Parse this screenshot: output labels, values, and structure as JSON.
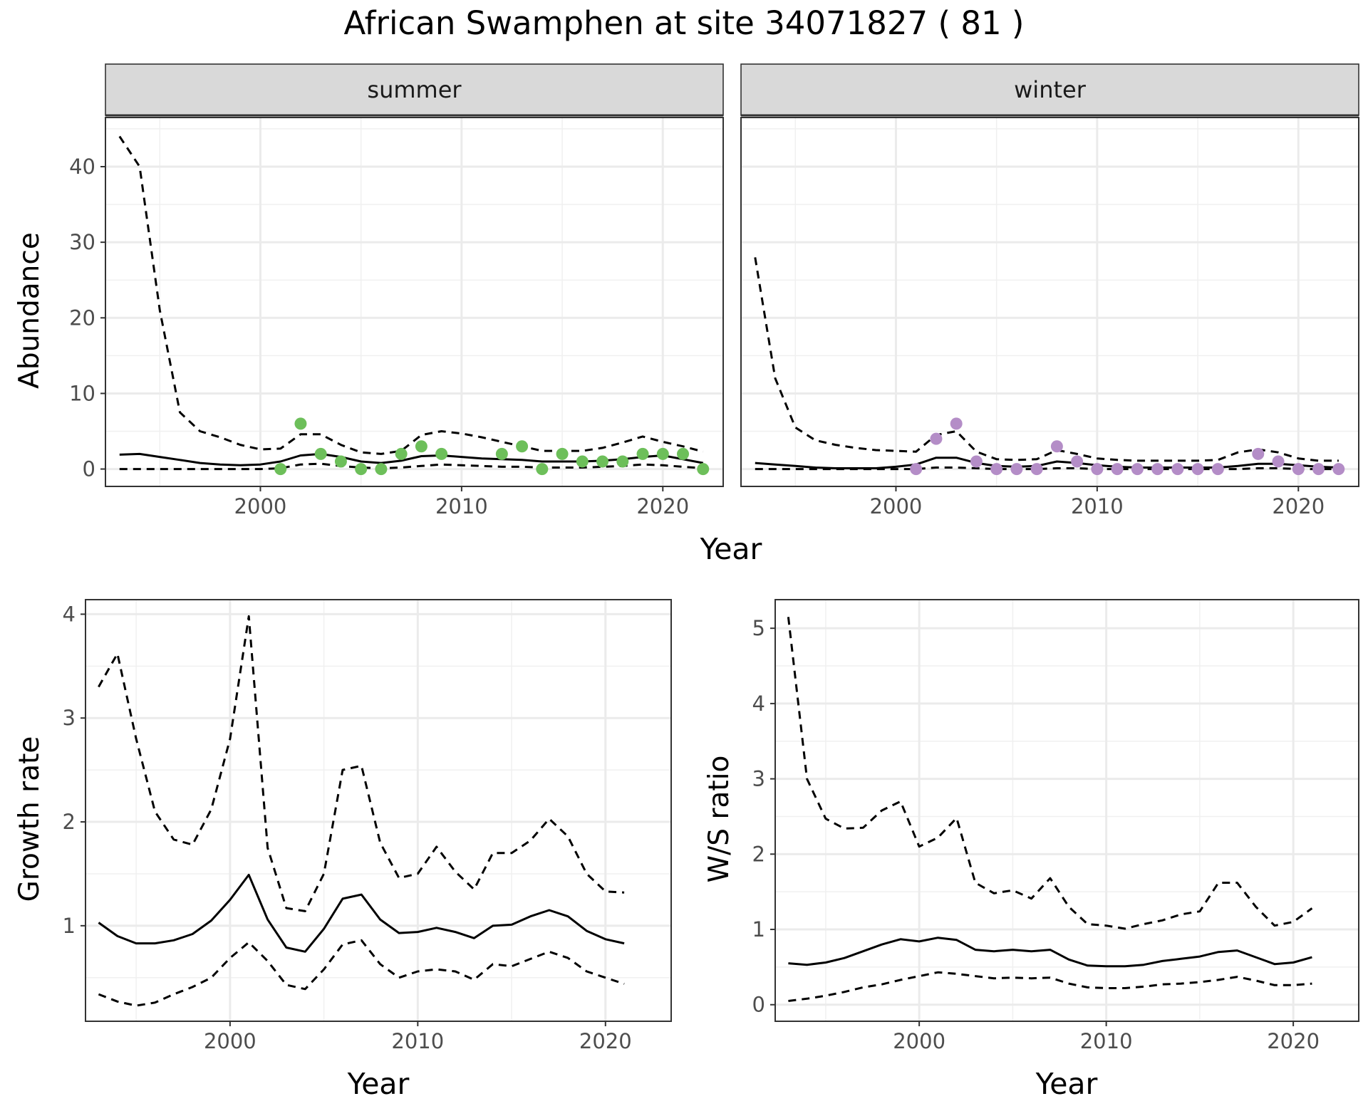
{
  "figure": {
    "title": "African Swamphen at site 34071827 ( 81 )"
  },
  "chart_data": [
    {
      "type": "line",
      "panel": "summer",
      "strip_label": "summer",
      "xlabel": "Year",
      "ylabel": "Abundance",
      "xlim": [
        1992.3,
        2023.0
      ],
      "ylim": [
        -2.3,
        46.5
      ],
      "x_ticks": [
        2000,
        2010,
        2020
      ],
      "y_ticks": [
        0,
        10,
        20,
        30,
        40
      ],
      "grid": true,
      "points_color": "#6dbf5a",
      "series": [
        {
          "role": "mean",
          "style": "solid",
          "x": [
            1993,
            1994,
            1995,
            1996,
            1997,
            1998,
            1999,
            2000,
            2001,
            2002,
            2003,
            2004,
            2005,
            2006,
            2007,
            2008,
            2009,
            2010,
            2011,
            2012,
            2013,
            2014,
            2015,
            2016,
            2017,
            2018,
            2019,
            2020,
            2021,
            2022
          ],
          "y": [
            1.9,
            2.0,
            1.6,
            1.2,
            0.8,
            0.6,
            0.5,
            0.6,
            1.0,
            1.8,
            2.0,
            1.6,
            1.0,
            0.8,
            1.1,
            1.7,
            1.8,
            1.6,
            1.4,
            1.3,
            1.2,
            1.0,
            1.0,
            1.0,
            1.1,
            1.3,
            1.6,
            1.8,
            1.3,
            0.8
          ]
        },
        {
          "role": "upper",
          "style": "dashed",
          "x": [
            1993,
            1994,
            1995,
            1996,
            1997,
            1998,
            1999,
            2000,
            2001,
            2002,
            2003,
            2004,
            2005,
            2006,
            2007,
            2008,
            2009,
            2010,
            2011,
            2012,
            2013,
            2014,
            2015,
            2016,
            2017,
            2018,
            2019,
            2020,
            2021,
            2022
          ],
          "y": [
            44,
            40,
            21,
            7.5,
            5,
            4.2,
            3.2,
            2.6,
            2.7,
            4.6,
            4.6,
            3.2,
            2.2,
            2.0,
            2.4,
            4.5,
            5.0,
            4.7,
            4.2,
            3.6,
            3.0,
            2.4,
            2.4,
            2.4,
            2.8,
            3.5,
            4.3,
            3.6,
            3.0,
            2.3
          ]
        },
        {
          "role": "lower",
          "style": "dashed",
          "x": [
            1993,
            1994,
            1995,
            1996,
            1997,
            1998,
            1999,
            2000,
            2001,
            2002,
            2003,
            2004,
            2005,
            2006,
            2007,
            2008,
            2009,
            2010,
            2011,
            2012,
            2013,
            2014,
            2015,
            2016,
            2017,
            2018,
            2019,
            2020,
            2021,
            2022
          ],
          "y": [
            0,
            0,
            0,
            0,
            0,
            0,
            0,
            0,
            0.1,
            0.6,
            0.7,
            0.4,
            0.2,
            0.1,
            0.2,
            0.4,
            0.6,
            0.5,
            0.4,
            0.3,
            0.3,
            0.2,
            0.2,
            0.2,
            0.3,
            0.4,
            0.6,
            0.5,
            0.3,
            0.1
          ]
        }
      ],
      "points": {
        "x": [
          2001,
          2002,
          2003,
          2004,
          2005,
          2006,
          2007,
          2008,
          2009,
          2012,
          2013,
          2014,
          2015,
          2016,
          2017,
          2018,
          2019,
          2020,
          2021,
          2022
        ],
        "y": [
          0,
          6,
          2,
          1,
          0,
          0,
          2,
          3,
          2,
          2,
          3,
          0,
          2,
          1,
          1,
          1,
          2,
          2,
          2,
          0
        ]
      }
    },
    {
      "type": "line",
      "panel": "winter",
      "strip_label": "winter",
      "xlabel": "Year",
      "ylabel": "",
      "xlim": [
        1992.3,
        2023.0
      ],
      "ylim": [
        -2.3,
        46.5
      ],
      "x_ticks": [
        2000,
        2010,
        2020
      ],
      "y_ticks": [
        0,
        10,
        20,
        30,
        40
      ],
      "grid": true,
      "points_color": "#b48dc7",
      "series": [
        {
          "role": "mean",
          "style": "solid",
          "x": [
            1993,
            1994,
            1995,
            1996,
            1997,
            1998,
            1999,
            2000,
            2001,
            2002,
            2003,
            2004,
            2005,
            2006,
            2007,
            2008,
            2009,
            2010,
            2011,
            2012,
            2013,
            2014,
            2015,
            2016,
            2017,
            2018,
            2019,
            2020,
            2021,
            2022
          ],
          "y": [
            0.8,
            0.6,
            0.4,
            0.2,
            0.1,
            0.1,
            0.1,
            0.3,
            0.6,
            1.5,
            1.5,
            0.8,
            0.4,
            0.3,
            0.4,
            1.0,
            0.8,
            0.5,
            0.3,
            0.2,
            0.2,
            0.2,
            0.2,
            0.2,
            0.4,
            0.7,
            0.7,
            0.5,
            0.3,
            0.2
          ]
        },
        {
          "role": "upper",
          "style": "dashed",
          "x": [
            1993,
            1994,
            1995,
            1996,
            1997,
            1998,
            1999,
            2000,
            2001,
            2002,
            2003,
            2004,
            2005,
            2006,
            2007,
            2008,
            2009,
            2010,
            2011,
            2012,
            2013,
            2014,
            2015,
            2016,
            2017,
            2018,
            2019,
            2020,
            2021,
            2022
          ],
          "y": [
            28,
            12,
            5.5,
            3.8,
            3.2,
            2.8,
            2.5,
            2.4,
            2.3,
            4.5,
            5.0,
            2.3,
            1.3,
            1.2,
            1.3,
            2.5,
            2.0,
            1.4,
            1.2,
            1.1,
            1.1,
            1.1,
            1.1,
            1.2,
            2.2,
            2.6,
            2.2,
            1.4,
            1.1,
            1.1
          ]
        },
        {
          "role": "lower",
          "style": "dashed",
          "x": [
            1993,
            1994,
            1995,
            1996,
            1997,
            1998,
            1999,
            2000,
            2001,
            2002,
            2003,
            2004,
            2005,
            2006,
            2007,
            2008,
            2009,
            2010,
            2011,
            2012,
            2013,
            2014,
            2015,
            2016,
            2017,
            2018,
            2019,
            2020,
            2021,
            2022
          ],
          "y": [
            0,
            0,
            0,
            0,
            0,
            0,
            0,
            0,
            0,
            0.2,
            0.2,
            0.1,
            0,
            0,
            0,
            0.1,
            0.1,
            0,
            0,
            0,
            0,
            0,
            0,
            0,
            0,
            0.1,
            0.1,
            0,
            0,
            0
          ]
        }
      ],
      "points": {
        "x": [
          2001,
          2002,
          2003,
          2004,
          2005,
          2006,
          2007,
          2008,
          2009,
          2010,
          2011,
          2012,
          2013,
          2014,
          2015,
          2016,
          2018,
          2019,
          2020,
          2021,
          2022
        ],
        "y": [
          0,
          4,
          6,
          1,
          0,
          0,
          0,
          3,
          1,
          0,
          0,
          0,
          0,
          0,
          0,
          0,
          2,
          1,
          0,
          0,
          0
        ]
      }
    },
    {
      "type": "line",
      "panel": "growth",
      "xlabel": "Year",
      "ylabel": "Growth rate",
      "xlim": [
        1992.3,
        2023.5
      ],
      "ylim": [
        0.08,
        4.14
      ],
      "x_ticks": [
        2000,
        2010,
        2020
      ],
      "y_ticks": [
        1,
        2,
        3,
        4
      ],
      "grid": true,
      "series": [
        {
          "role": "mean",
          "style": "solid",
          "x": [
            1993,
            1994,
            1995,
            1996,
            1997,
            1998,
            1999,
            2000,
            2001,
            2002,
            2003,
            2004,
            2005,
            2006,
            2007,
            2008,
            2009,
            2010,
            2011,
            2012,
            2013,
            2014,
            2015,
            2016,
            2017,
            2018,
            2019,
            2020,
            2021
          ],
          "y": [
            1.03,
            0.9,
            0.83,
            0.83,
            0.86,
            0.92,
            1.05,
            1.25,
            1.49,
            1.06,
            0.79,
            0.75,
            0.97,
            1.26,
            1.3,
            1.06,
            0.93,
            0.94,
            0.98,
            0.94,
            0.88,
            1.0,
            1.01,
            1.09,
            1.15,
            1.09,
            0.95,
            0.87,
            0.83
          ]
        },
        {
          "role": "upper",
          "style": "dashed",
          "x": [
            1993,
            1994,
            1995,
            1996,
            1997,
            1998,
            1999,
            2000,
            2001,
            2002,
            2003,
            2004,
            2005,
            2006,
            2007,
            2008,
            2009,
            2010,
            2011,
            2012,
            2013,
            2014,
            2015,
            2016,
            2017,
            2018,
            2019,
            2020,
            2021
          ],
          "y": [
            3.3,
            3.62,
            2.8,
            2.1,
            1.83,
            1.78,
            2.12,
            2.8,
            3.98,
            1.75,
            1.17,
            1.14,
            1.5,
            2.5,
            2.54,
            1.8,
            1.46,
            1.5,
            1.76,
            1.52,
            1.35,
            1.7,
            1.7,
            1.82,
            2.03,
            1.86,
            1.5,
            1.33,
            1.32
          ]
        },
        {
          "role": "lower",
          "style": "dashed",
          "x": [
            1993,
            1994,
            1995,
            1996,
            1997,
            1998,
            1999,
            2000,
            2001,
            2002,
            2003,
            2004,
            2005,
            2006,
            2007,
            2008,
            2009,
            2010,
            2011,
            2012,
            2013,
            2014,
            2015,
            2016,
            2017,
            2018,
            2019,
            2020,
            2021
          ],
          "y": [
            0.34,
            0.27,
            0.23,
            0.26,
            0.34,
            0.41,
            0.5,
            0.69,
            0.84,
            0.66,
            0.43,
            0.39,
            0.58,
            0.82,
            0.86,
            0.63,
            0.5,
            0.56,
            0.58,
            0.56,
            0.48,
            0.63,
            0.61,
            0.68,
            0.75,
            0.69,
            0.56,
            0.5,
            0.44
          ]
        }
      ]
    },
    {
      "type": "line",
      "panel": "ratio",
      "xlabel": "Year",
      "ylabel": "W/S ratio",
      "xlim": [
        1992.3,
        2023.5
      ],
      "ylim": [
        -0.22,
        5.38
      ],
      "x_ticks": [
        2000,
        2010,
        2020
      ],
      "y_ticks": [
        0,
        1,
        2,
        3,
        4,
        5
      ],
      "grid": true,
      "series": [
        {
          "role": "mean",
          "style": "solid",
          "x": [
            1993,
            1994,
            1995,
            1996,
            1997,
            1998,
            1999,
            2000,
            2001,
            2002,
            2003,
            2004,
            2005,
            2006,
            2007,
            2008,
            2009,
            2010,
            2011,
            2012,
            2013,
            2014,
            2015,
            2016,
            2017,
            2018,
            2019,
            2020,
            2021
          ],
          "y": [
            0.55,
            0.53,
            0.56,
            0.62,
            0.71,
            0.8,
            0.87,
            0.84,
            0.89,
            0.86,
            0.73,
            0.71,
            0.73,
            0.71,
            0.73,
            0.6,
            0.52,
            0.51,
            0.51,
            0.53,
            0.58,
            0.61,
            0.64,
            0.7,
            0.72,
            0.63,
            0.54,
            0.56,
            0.63
          ]
        },
        {
          "role": "upper",
          "style": "dashed",
          "x": [
            1993,
            1994,
            1995,
            1996,
            1997,
            1998,
            1999,
            2000,
            2001,
            2002,
            2003,
            2004,
            2005,
            2006,
            2007,
            2008,
            2009,
            2010,
            2011,
            2012,
            2013,
            2014,
            2015,
            2016,
            2017,
            2018,
            2019,
            2020,
            2021
          ],
          "y": [
            5.15,
            3.0,
            2.47,
            2.34,
            2.35,
            2.58,
            2.7,
            2.1,
            2.22,
            2.48,
            1.62,
            1.48,
            1.52,
            1.41,
            1.68,
            1.3,
            1.07,
            1.05,
            1.01,
            1.07,
            1.12,
            1.2,
            1.24,
            1.62,
            1.62,
            1.3,
            1.05,
            1.1,
            1.28
          ]
        },
        {
          "role": "lower",
          "style": "dashed",
          "x": [
            1993,
            1994,
            1995,
            1996,
            1997,
            1998,
            1999,
            2000,
            2001,
            2002,
            2003,
            2004,
            2005,
            2006,
            2007,
            2008,
            2009,
            2010,
            2011,
            2012,
            2013,
            2014,
            2015,
            2016,
            2017,
            2018,
            2019,
            2020,
            2021
          ],
          "y": [
            0.05,
            0.08,
            0.12,
            0.17,
            0.23,
            0.27,
            0.33,
            0.38,
            0.43,
            0.41,
            0.38,
            0.35,
            0.36,
            0.35,
            0.36,
            0.28,
            0.23,
            0.22,
            0.22,
            0.24,
            0.27,
            0.28,
            0.3,
            0.33,
            0.37,
            0.32,
            0.26,
            0.26,
            0.28
          ]
        }
      ]
    }
  ]
}
